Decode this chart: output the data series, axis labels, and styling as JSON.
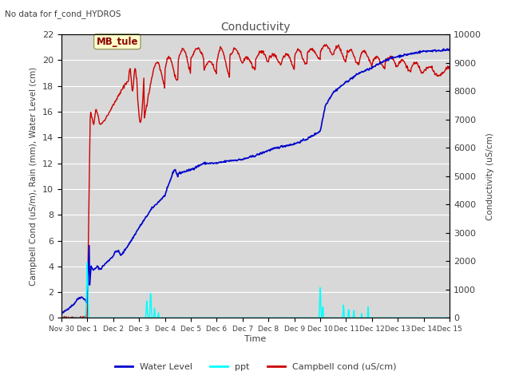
{
  "title": "Conductivity",
  "top_left_text": "No data for f_cond_HYDROS",
  "annotation_text": "MB_tule",
  "xlabel": "Time",
  "ylabel_left": "Campbell Cond (uS/m), Rain (mm), Water Level (cm)",
  "ylabel_right": "Conductivity (uS/cm)",
  "ylim_left": [
    0,
    22
  ],
  "ylim_right": [
    0,
    10000
  ],
  "yticks_left": [
    0,
    2,
    4,
    6,
    8,
    10,
    12,
    14,
    16,
    18,
    20,
    22
  ],
  "yticks_right": [
    0,
    1000,
    2000,
    3000,
    4000,
    5000,
    6000,
    7000,
    8000,
    9000,
    10000
  ],
  "xtick_labels": [
    "Nov 30",
    "Dec 1",
    "Dec 2",
    "Dec 3",
    "Dec 4",
    "Dec 5",
    "Dec 6",
    "Dec 7",
    "Dec 8",
    "Dec 9",
    "Dec 10",
    "Dec 11",
    "Dec 12",
    "Dec 13",
    "Dec 14",
    "Dec 15"
  ],
  "plot_bg_color": "#d8d8d8",
  "water_level_color": "#0000cc",
  "ppt_color": "#00ffff",
  "campbell_cond_color": "#cc0000",
  "legend_entries": [
    "Water Level",
    "ppt",
    "Campbell cond (uS/cm)"
  ],
  "title_color": "#505050",
  "text_color": "#404040",
  "grid_color": "#ffffff",
  "annotation_bg": "#ffffcc",
  "annotation_edge": "#999966"
}
